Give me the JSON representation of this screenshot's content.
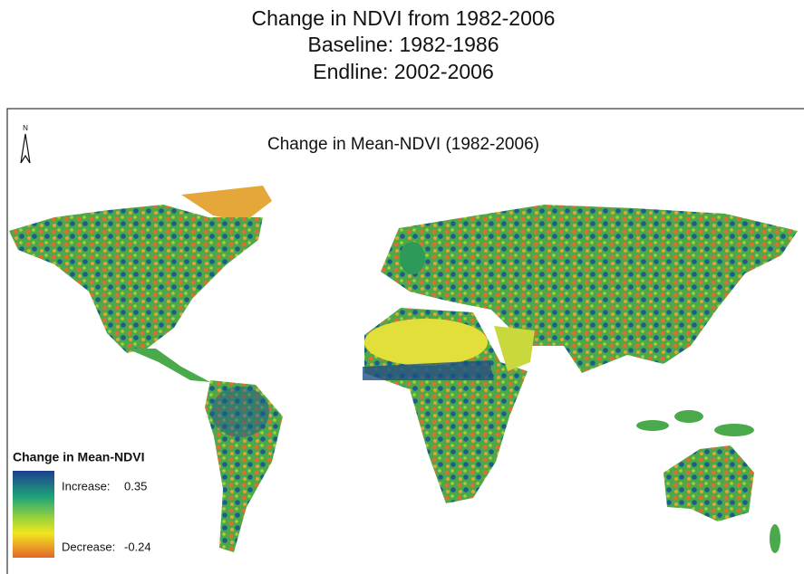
{
  "header": {
    "lines": [
      "Change in NDVI from 1982-2006",
      "Baseline: 1982-1986",
      "Endline: 2002-2006"
    ]
  },
  "map": {
    "title": "Change in Mean-NDVI (1982-2006)",
    "north": "N"
  },
  "legend": {
    "title": "Change in Mean-NDVI",
    "max_label": "Increase:",
    "max": 0.35,
    "min_label": "Decrease:",
    "min": -0.24
  }
}
